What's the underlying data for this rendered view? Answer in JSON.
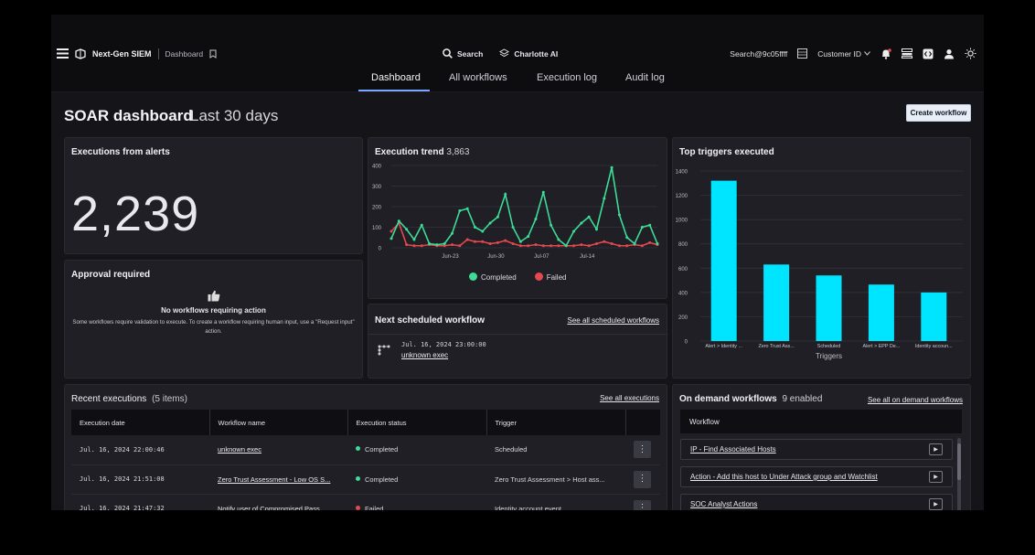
{
  "header": {
    "brand": "Next-Gen SIEM",
    "breadcrumb": "Dashboard",
    "search_label": "Search",
    "ai_label": "Charlotte AI",
    "search_tag": "Search@9c05ffff",
    "customer_label": "Customer ID"
  },
  "tabs": [
    "Dashboard",
    "All workflows",
    "Execution log",
    "Audit log"
  ],
  "page": {
    "title": "SOAR dashboard",
    "subtitle": "Last 30 days",
    "create_button": "Create workflow"
  },
  "executions_from_alerts": {
    "title": "Executions from alerts",
    "value": "2,239"
  },
  "approval": {
    "title": "Approval required",
    "heading": "No workflows requiring action",
    "text": "Some workflows require validation to execute. To create a workflow requiring human input, use a \"Request input\" action."
  },
  "trend": {
    "title": "Execution trend",
    "total": "3,863",
    "legend_completed": "Completed",
    "legend_failed": "Failed"
  },
  "chart_data": [
    {
      "type": "line",
      "title": "Execution trend",
      "x_ticks": [
        "Jun-23",
        "Jun-30",
        "Jul-07",
        "Jul-14"
      ],
      "ylim": [
        0,
        400
      ],
      "y_ticks": [
        "0",
        "100",
        "200",
        "300",
        "400"
      ],
      "series": [
        {
          "name": "Completed",
          "color": "#3ddc97",
          "values": [
            45,
            130,
            90,
            40,
            110,
            20,
            15,
            20,
            70,
            180,
            190,
            100,
            80,
            120,
            150,
            260,
            100,
            30,
            55,
            140,
            270,
            110,
            40,
            10,
            80,
            120,
            150,
            90,
            240,
            390,
            160,
            50,
            20,
            100,
            110,
            20
          ]
        },
        {
          "name": "Failed",
          "color": "#e5484d",
          "values": [
            80,
            120,
            15,
            10,
            10,
            15,
            10,
            10,
            15,
            10,
            40,
            30,
            30,
            20,
            25,
            35,
            20,
            10,
            10,
            15,
            10,
            10,
            10,
            10,
            10,
            15,
            10,
            20,
            30,
            20,
            10,
            10,
            15,
            10,
            25,
            15
          ]
        }
      ]
    },
    {
      "type": "bar",
      "title": "Top triggers executed",
      "xlabel": "Triggers",
      "categories": [
        "Alert > Identity ...",
        "Zero Trust Ass...",
        "Scheduled",
        "Alert > EPP De...",
        "Identity accoun..."
      ],
      "values": [
        1320,
        630,
        540,
        465,
        400
      ],
      "ylim": [
        0,
        1400
      ],
      "y_ticks": [
        "0",
        "200",
        "400",
        "600",
        "800",
        "1000",
        "1200",
        "1400"
      ],
      "color": "#00e5ff"
    }
  ],
  "triggers": {
    "title": "Top triggers executed",
    "xlabel": "Triggers"
  },
  "next_scheduled": {
    "title": "Next scheduled workflow",
    "link": "See all scheduled workflows",
    "time": "Jul. 16, 2024 23:00:00",
    "workflow": "unknown exec"
  },
  "recent": {
    "title": "Recent executions",
    "count": "(5 items)",
    "link": "See all executions",
    "columns": [
      "Execution date",
      "Workflow name",
      "Execution status",
      "Trigger"
    ],
    "rows": [
      {
        "date": "Jul. 16, 2024 22:00:46",
        "workflow": "unknown exec",
        "status": "Completed",
        "trigger": "Scheduled"
      },
      {
        "date": "Jul. 16, 2024 21:51:08",
        "workflow": "Zero Trust Assessment - Low OS S...",
        "status": "Completed",
        "trigger": "Zero Trust Assessment > Host ass..."
      },
      {
        "date": "Jul. 16, 2024 21:47:32",
        "workflow": "Notify user of Compromised Pass...",
        "status": "Failed",
        "trigger": "Identity account event"
      }
    ]
  },
  "on_demand": {
    "title": "On demand workflows",
    "count": "9 enabled",
    "link": "See all on demand workflows",
    "column": "Workflow",
    "items": [
      "IP - Find Associated Hosts",
      "Action - Add this host to Under Attack group and Watchlist",
      "SOC Analyst Actions"
    ]
  },
  "colors": {
    "completed": "#3ddc97",
    "failed": "#e5484d",
    "bars": "#00e5ff",
    "accent": "#7aa7ff"
  }
}
